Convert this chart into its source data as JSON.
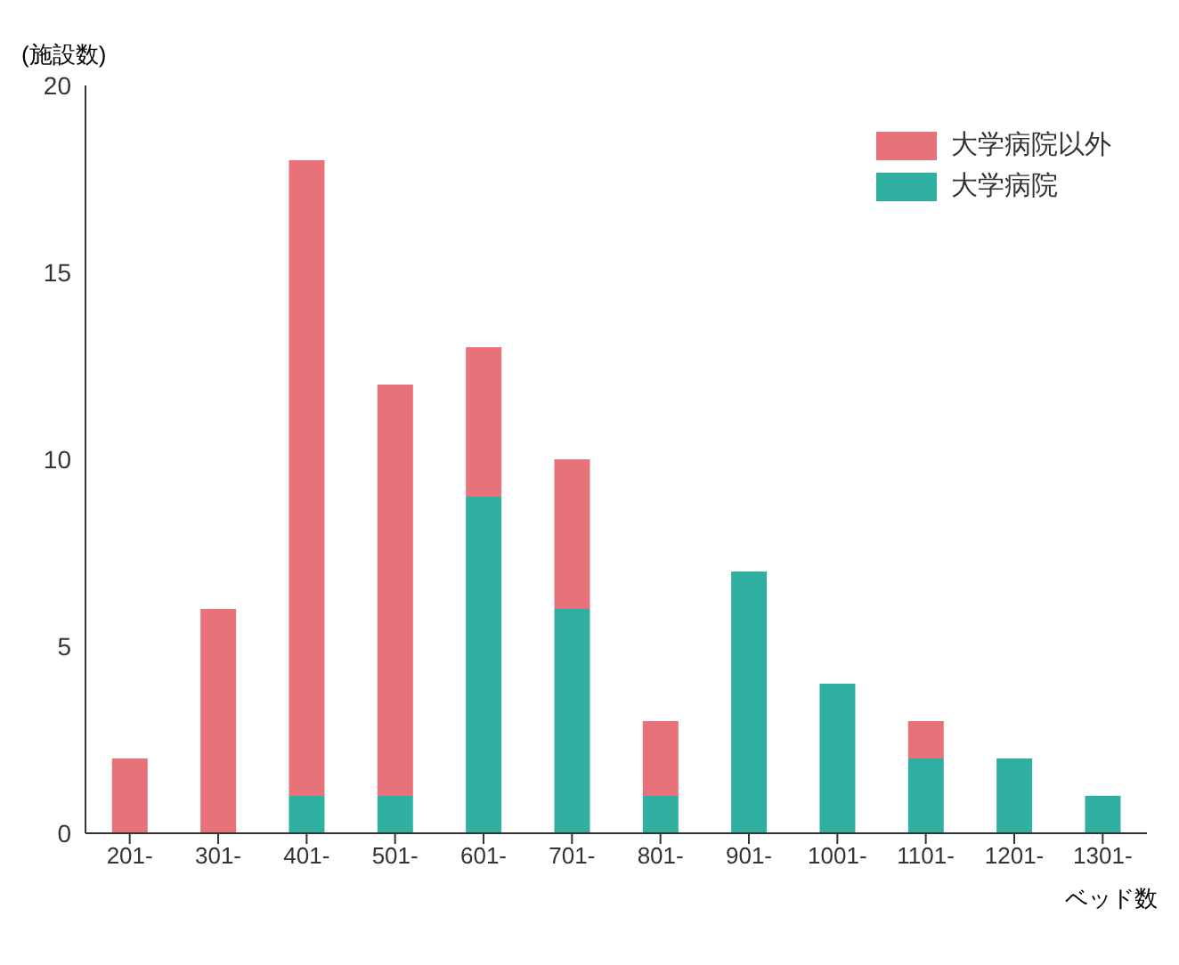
{
  "chart_data": {
    "type": "bar",
    "stacked": true,
    "ylabel": "(施設数)",
    "xlabel": "ベッド数",
    "categories": [
      "201-",
      "301-",
      "401-",
      "501-",
      "601-",
      "701-",
      "801-",
      "901-",
      "1001-",
      "1101-",
      "1201-",
      "1301-"
    ],
    "series": [
      {
        "name": "大学病院",
        "color": "#2fb0a0",
        "values": [
          0,
          0,
          1,
          1,
          9,
          6,
          1,
          7,
          4,
          2,
          2,
          1
        ]
      },
      {
        "name": "大学病院以外",
        "color": "#e8727a",
        "values": [
          2,
          6,
          17,
          11,
          4,
          4,
          2,
          0,
          0,
          1,
          0,
          0
        ]
      }
    ],
    "ylim": [
      0,
      20
    ],
    "yticks": [
      0,
      5,
      10,
      15,
      20
    ],
    "legend": "top right"
  }
}
